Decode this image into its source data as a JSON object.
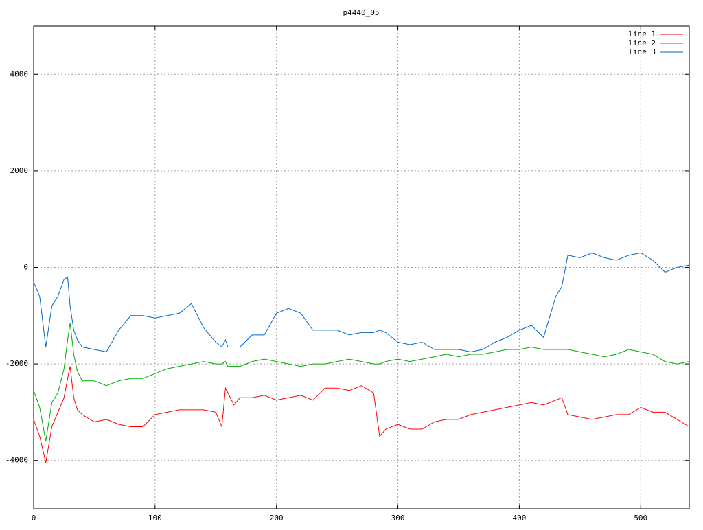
{
  "chart_data": {
    "type": "line",
    "title": "p4440_05",
    "x": [
      0,
      5,
      10,
      15,
      20,
      25,
      28,
      30,
      33,
      36,
      40,
      50,
      60,
      70,
      80,
      90,
      100,
      110,
      120,
      130,
      140,
      150,
      155,
      158,
      160,
      165,
      170,
      180,
      190,
      200,
      210,
      220,
      230,
      240,
      250,
      260,
      270,
      280,
      285,
      290,
      300,
      310,
      320,
      330,
      340,
      350,
      360,
      370,
      380,
      390,
      400,
      410,
      420,
      430,
      435,
      440,
      450,
      460,
      470,
      480,
      490,
      500,
      510,
      520,
      530,
      540
    ],
    "series": [
      {
        "name": "line 1",
        "color": "#ff0000",
        "values": [
          -3150,
          -3500,
          -4050,
          -3300,
          -3000,
          -2700,
          -2300,
          -2050,
          -2700,
          -2950,
          -3050,
          -3200,
          -3150,
          -3250,
          -3300,
          -3300,
          -3050,
          -3000,
          -2950,
          -2950,
          -2950,
          -3000,
          -3300,
          -2500,
          -2600,
          -2850,
          -2700,
          -2700,
          -2650,
          -2750,
          -2700,
          -2650,
          -2750,
          -2500,
          -2500,
          -2550,
          -2450,
          -2600,
          -3500,
          -3350,
          -3250,
          -3350,
          -3350,
          -3200,
          -3150,
          -3150,
          -3050,
          -3000,
          -2950,
          -2900,
          -2850,
          -2800,
          -2850,
          -2750,
          -2700,
          -3050,
          -3100,
          -3150,
          -3100,
          -3050,
          -3050,
          -2900,
          -3000,
          -3000,
          -3150,
          -3300
        ]
      },
      {
        "name": "line 2",
        "color": "#00aa00",
        "values": [
          -2550,
          -2900,
          -3600,
          -2800,
          -2600,
          -2100,
          -1500,
          -1150,
          -1800,
          -2150,
          -2350,
          -2350,
          -2450,
          -2350,
          -2300,
          -2300,
          -2200,
          -2100,
          -2050,
          -2000,
          -1950,
          -2000,
          -2000,
          -1950,
          -2050,
          -2050,
          -2050,
          -1950,
          -1900,
          -1950,
          -2000,
          -2050,
          -2000,
          -2000,
          -1950,
          -1900,
          -1950,
          -2000,
          -2000,
          -1950,
          -1900,
          -1950,
          -1900,
          -1850,
          -1800,
          -1850,
          -1800,
          -1800,
          -1750,
          -1700,
          -1700,
          -1650,
          -1700,
          -1700,
          -1700,
          -1700,
          -1750,
          -1800,
          -1850,
          -1800,
          -1700,
          -1750,
          -1800,
          -1950,
          -2000,
          -1950
        ]
      },
      {
        "name": "line 3",
        "color": "#0066cc",
        "values": [
          -300,
          -600,
          -1650,
          -800,
          -600,
          -250,
          -200,
          -800,
          -1300,
          -1500,
          -1650,
          -1700,
          -1750,
          -1300,
          -1000,
          -1000,
          -1050,
          -1000,
          -950,
          -750,
          -1250,
          -1550,
          -1650,
          -1500,
          -1650,
          -1650,
          -1650,
          -1400,
          -1400,
          -950,
          -850,
          -950,
          -1300,
          -1300,
          -1300,
          -1400,
          -1350,
          -1350,
          -1300,
          -1350,
          -1550,
          -1600,
          -1550,
          -1700,
          -1700,
          -1700,
          -1750,
          -1700,
          -1550,
          -1450,
          -1300,
          -1200,
          -1450,
          -600,
          -400,
          250,
          200,
          300,
          200,
          150,
          250,
          300,
          150,
          -100,
          0,
          50
        ]
      }
    ],
    "xlim": [
      0,
      540
    ],
    "ylim": [
      -5000,
      5000
    ],
    "xticks": [
      0,
      100,
      200,
      300,
      400,
      500
    ],
    "yticks": [
      -4000,
      -2000,
      0,
      2000,
      4000
    ],
    "grid": true,
    "legend": "top-right"
  }
}
